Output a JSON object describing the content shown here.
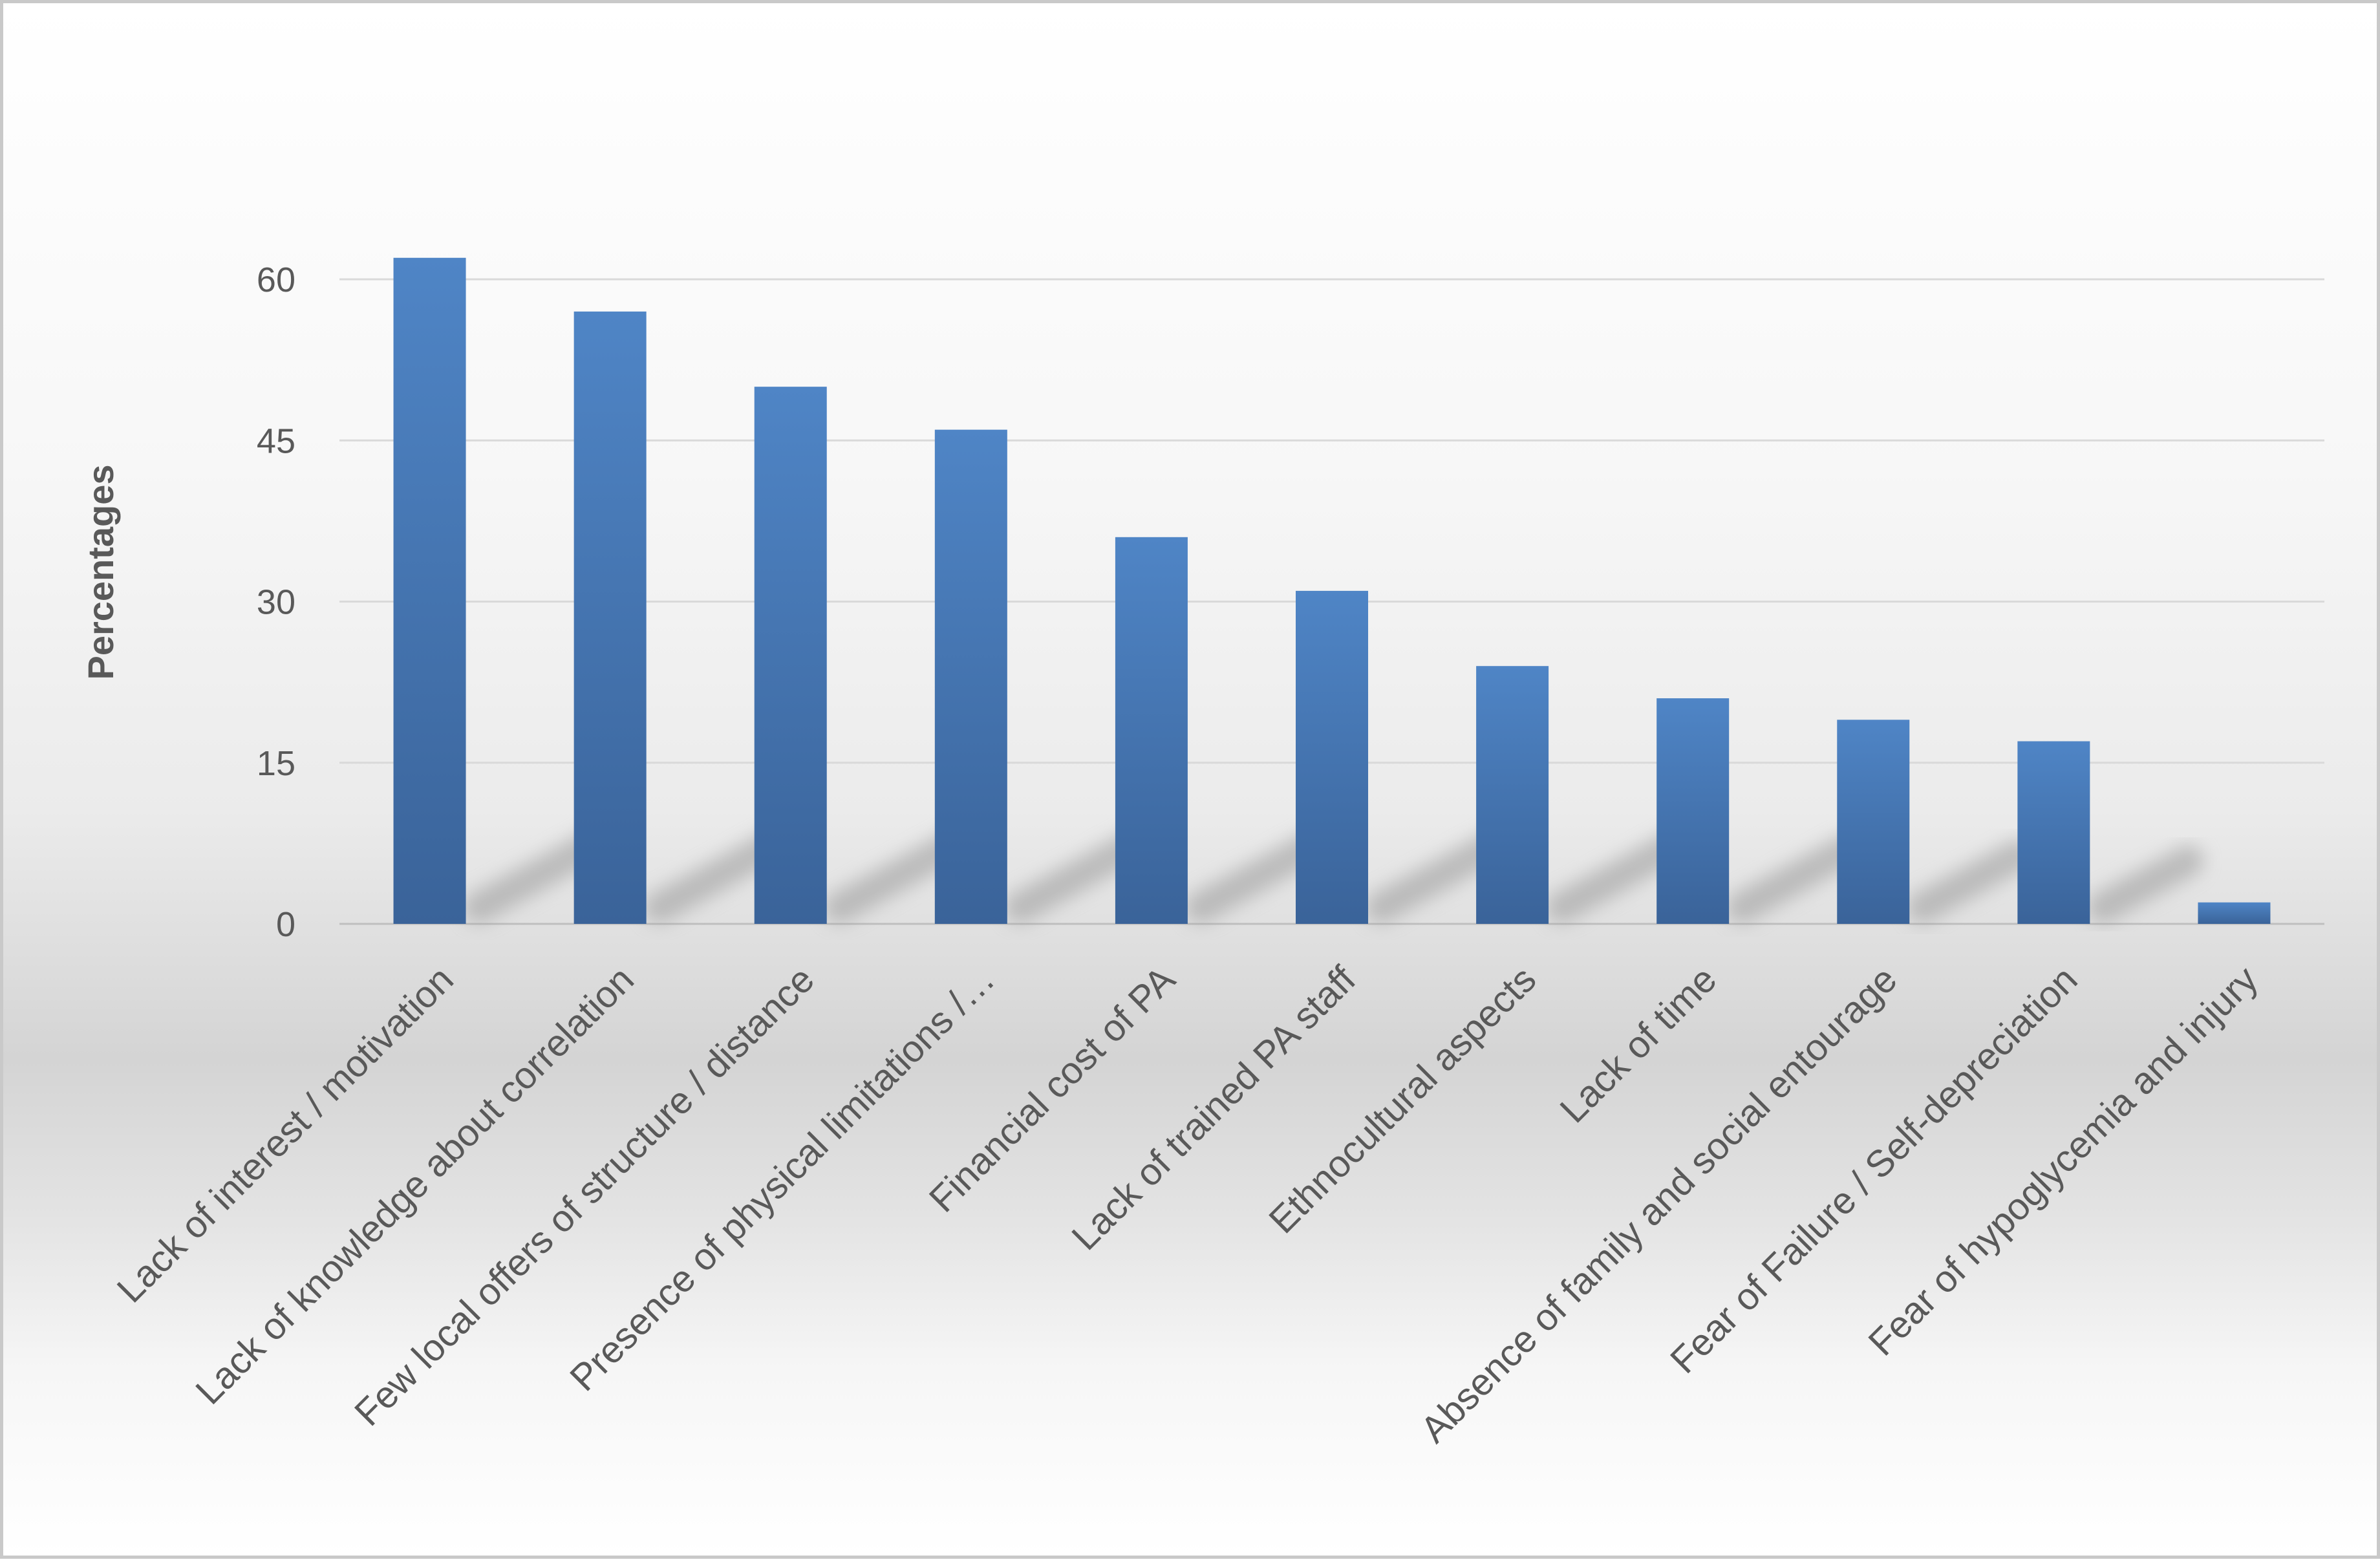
{
  "chart_data": {
    "type": "bar",
    "title": "",
    "xlabel": "",
    "ylabel": "Percentages",
    "ylim": [
      0,
      60
    ],
    "yticks": [
      "0",
      "15",
      "30",
      "45",
      "60"
    ],
    "categories": [
      "Lack of interest / motivation",
      "Lack of knowledge about correlation",
      "Few local offers of structure / distance",
      "Presence of physical limitations /…",
      "Financial cost of PA",
      "Lack of trained PA staff",
      "Ethnocultural aspects",
      "Lack of time",
      "Absence of family and social entourage",
      "Fear of Failure / Self-depreciation",
      "Fear of hypoglycemia and injury"
    ],
    "values": [
      62,
      57,
      50,
      46,
      36,
      31,
      24,
      21,
      19,
      17,
      2
    ],
    "grid": true,
    "legend": "none",
    "colors": {
      "bar": "#4a7ebb",
      "bar_dark": "#3a6399",
      "grid": "#d9d9d9"
    }
  }
}
